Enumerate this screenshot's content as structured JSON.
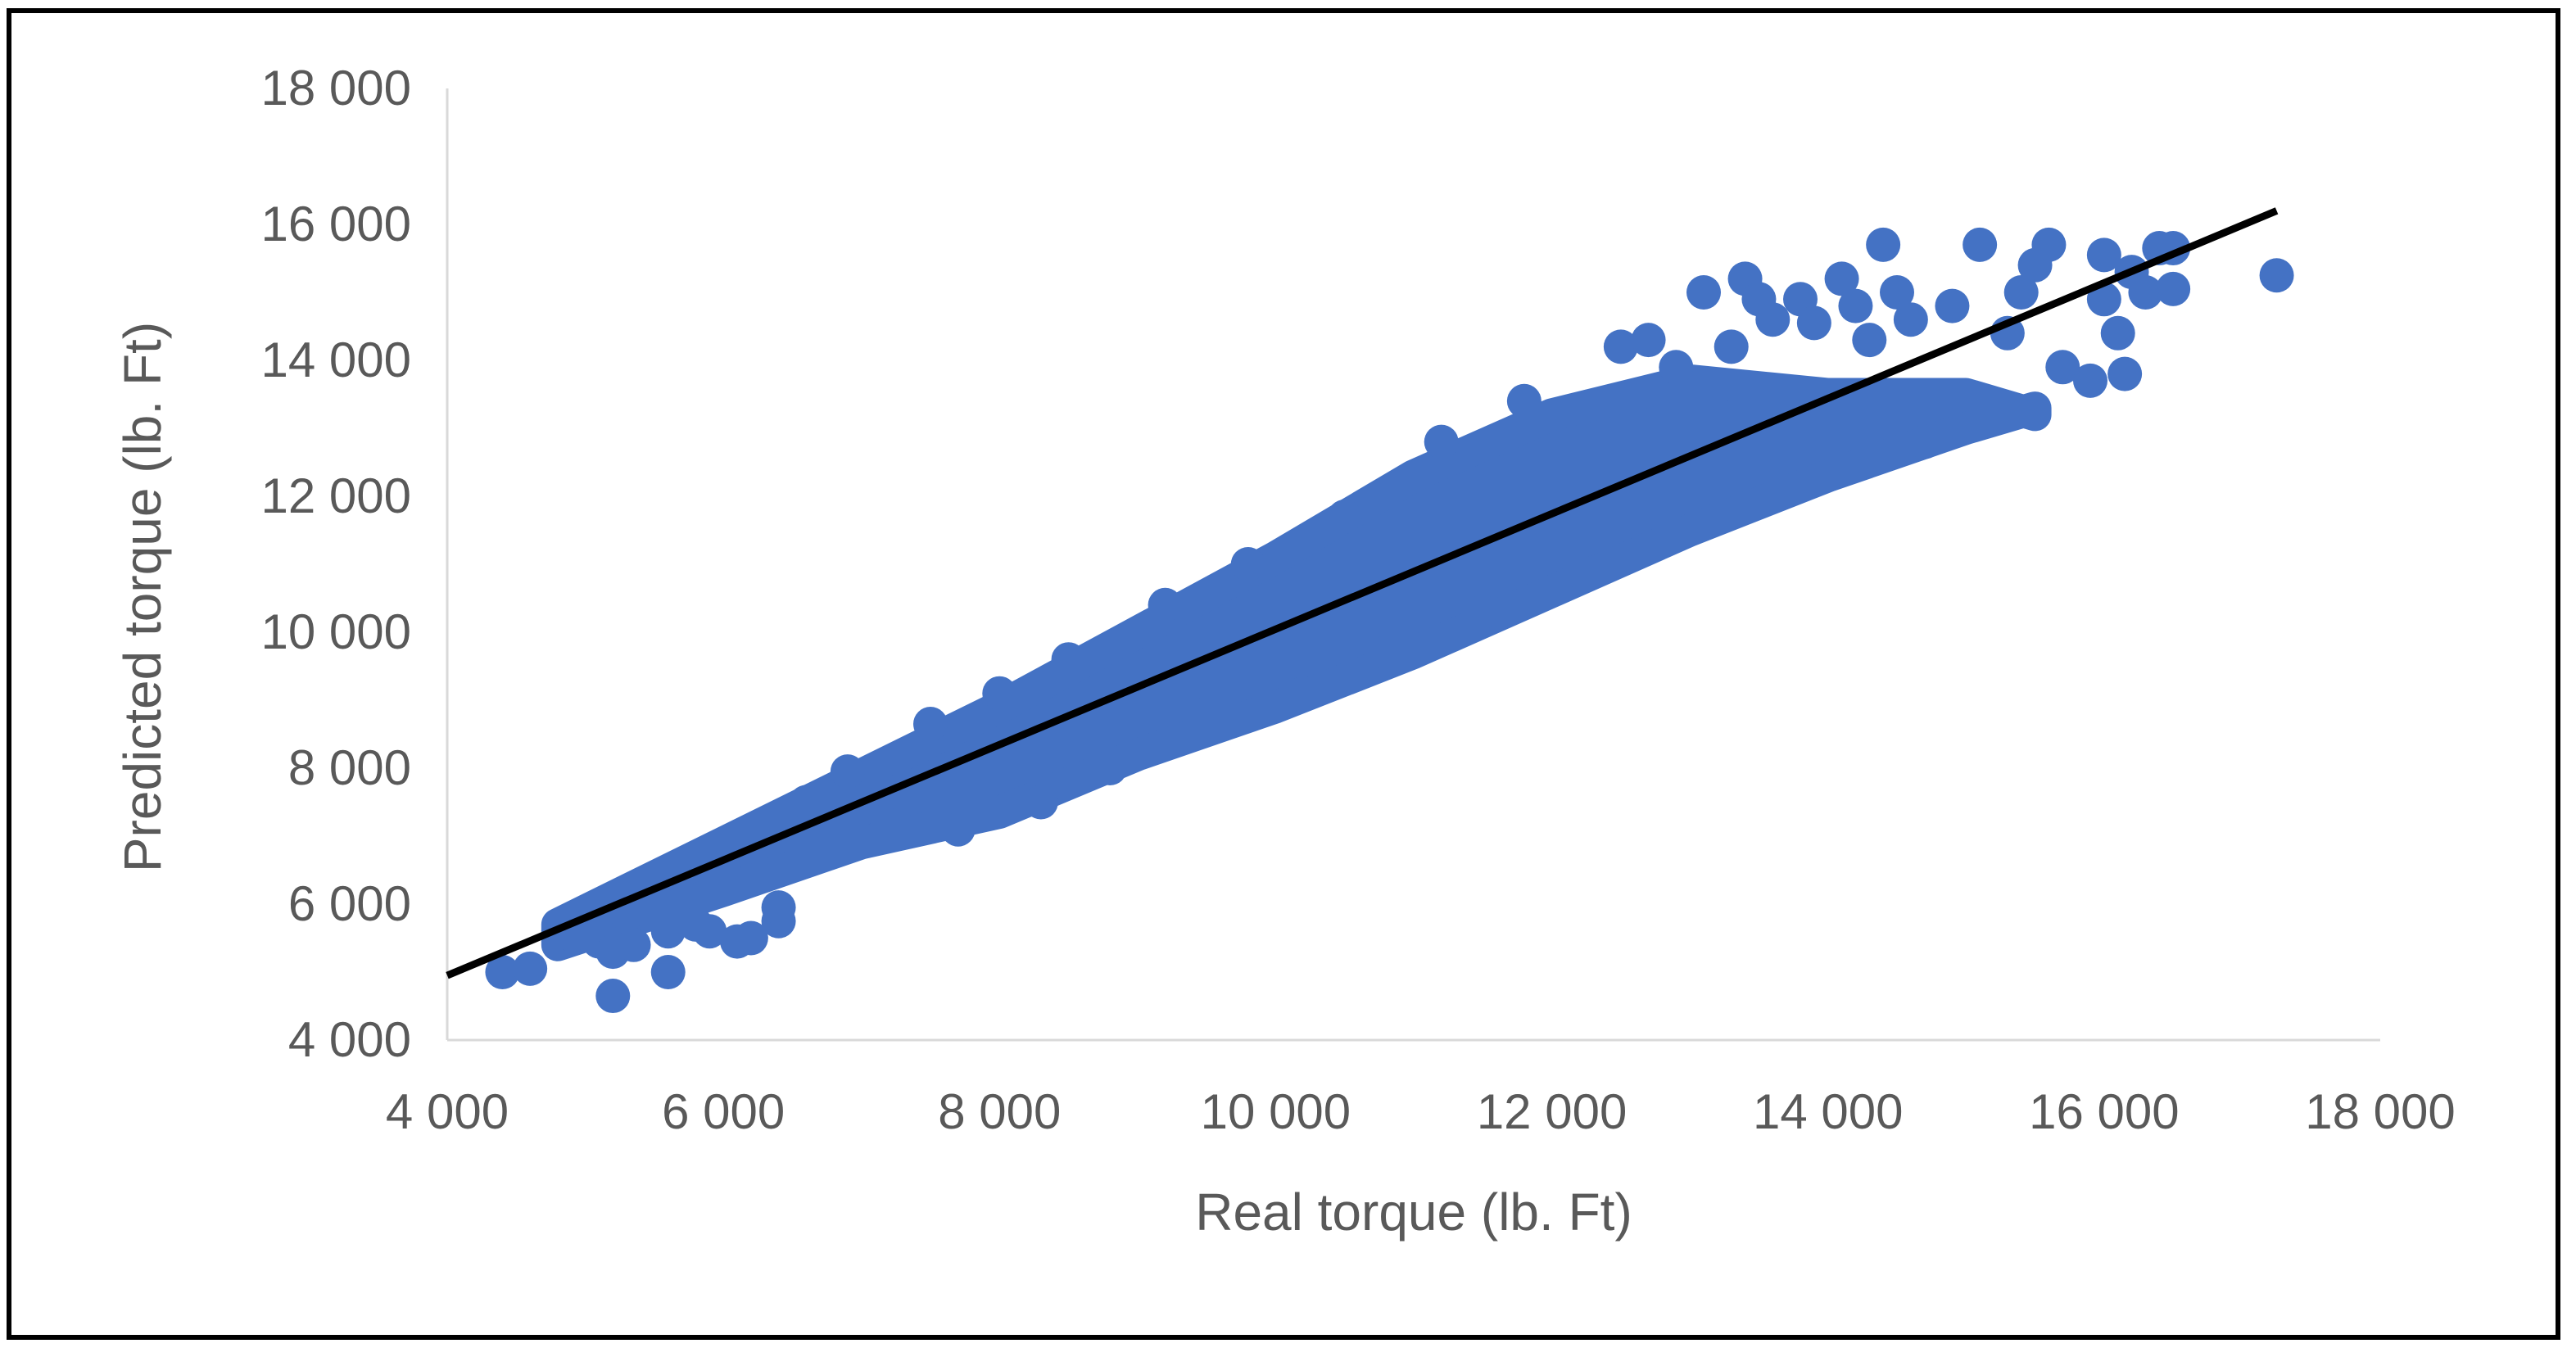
{
  "chart_data": {
    "type": "scatter",
    "title": "",
    "xlabel": "Real torque (lb. Ft)",
    "ylabel": "Predicted torque (lb. Ft)",
    "xlim": [
      4000,
      18000
    ],
    "ylim": [
      4000,
      18000
    ],
    "x_ticks": [
      4000,
      6000,
      8000,
      10000,
      12000,
      14000,
      16000,
      18000
    ],
    "y_ticks": [
      4000,
      6000,
      8000,
      10000,
      12000,
      14000,
      16000,
      18000
    ],
    "x_tick_labels": [
      "4 000",
      "6 000",
      "8 000",
      "10 000",
      "12 000",
      "14 000",
      "16 000",
      "18 000"
    ],
    "y_tick_labels": [
      "4 000",
      "6 000",
      "8 000",
      "10 000",
      "12 000",
      "14 000",
      "16 000",
      "18 000"
    ],
    "grid": false,
    "legend": "none",
    "marker_color": "#4472C4",
    "trendline_color": "#000000",
    "trendline": {
      "x": [
        4000,
        17250
      ],
      "y": [
        4950,
        16200
      ]
    },
    "dense_band": {
      "x": [
        4800,
        6000,
        7000,
        8000,
        9000,
        10000,
        11000,
        12000,
        13000,
        14000,
        15000,
        15500
      ],
      "y_lower": [
        5400,
        6200,
        6900,
        7350,
        8200,
        8900,
        9700,
        10600,
        11500,
        12300,
        13000,
        13300
      ],
      "y_upper": [
        5700,
        6900,
        7900,
        8900,
        10000,
        11100,
        12300,
        13200,
        13700,
        13500,
        13500,
        13200
      ]
    },
    "points": [
      [
        4400,
        5000
      ],
      [
        4600,
        5050
      ],
      [
        4900,
        5550
      ],
      [
        5000,
        5650
      ],
      [
        5100,
        5450
      ],
      [
        5200,
        4650
      ],
      [
        5200,
        5300
      ],
      [
        5300,
        5850
      ],
      [
        5350,
        5400
      ],
      [
        5500,
        6050
      ],
      [
        5600,
        5600
      ],
      [
        5600,
        5000
      ],
      [
        5800,
        5700
      ],
      [
        5900,
        5600
      ],
      [
        6000,
        6550
      ],
      [
        6100,
        5450
      ],
      [
        6200,
        5500
      ],
      [
        6400,
        5750
      ],
      [
        6400,
        5950
      ],
      [
        6600,
        7500
      ],
      [
        6900,
        7950
      ],
      [
        7000,
        7400
      ],
      [
        7200,
        7650
      ],
      [
        7500,
        8650
      ],
      [
        7700,
        7100
      ],
      [
        8000,
        9100
      ],
      [
        8300,
        7500
      ],
      [
        8500,
        9600
      ],
      [
        8800,
        8000
      ],
      [
        9200,
        10400
      ],
      [
        9500,
        8800
      ],
      [
        9800,
        11000
      ],
      [
        10200,
        9100
      ],
      [
        10500,
        11700
      ],
      [
        10800,
        9700
      ],
      [
        11200,
        12800
      ],
      [
        11500,
        10300
      ],
      [
        11800,
        13400
      ],
      [
        12200,
        10900
      ],
      [
        12500,
        14200
      ],
      [
        12700,
        14300
      ],
      [
        12900,
        13900
      ],
      [
        13100,
        15000
      ],
      [
        13300,
        14200
      ],
      [
        13400,
        15200
      ],
      [
        13500,
        14900
      ],
      [
        13600,
        14600
      ],
      [
        13800,
        14900
      ],
      [
        13900,
        14550
      ],
      [
        14100,
        15200
      ],
      [
        14200,
        14800
      ],
      [
        14300,
        14300
      ],
      [
        14400,
        15700
      ],
      [
        14500,
        15000
      ],
      [
        14600,
        14600
      ],
      [
        14700,
        12800
      ],
      [
        14900,
        14800
      ],
      [
        15100,
        15700
      ],
      [
        15300,
        14400
      ],
      [
        15400,
        15000
      ],
      [
        15500,
        15400
      ],
      [
        15600,
        15700
      ],
      [
        15700,
        13900
      ],
      [
        15900,
        13700
      ],
      [
        16000,
        15550
      ],
      [
        16000,
        14900
      ],
      [
        16100,
        14400
      ],
      [
        16150,
        13800
      ],
      [
        16200,
        15300
      ],
      [
        16300,
        15000
      ],
      [
        16400,
        15650
      ],
      [
        16500,
        15650
      ],
      [
        16500,
        15050
      ],
      [
        17250,
        15250
      ]
    ]
  }
}
